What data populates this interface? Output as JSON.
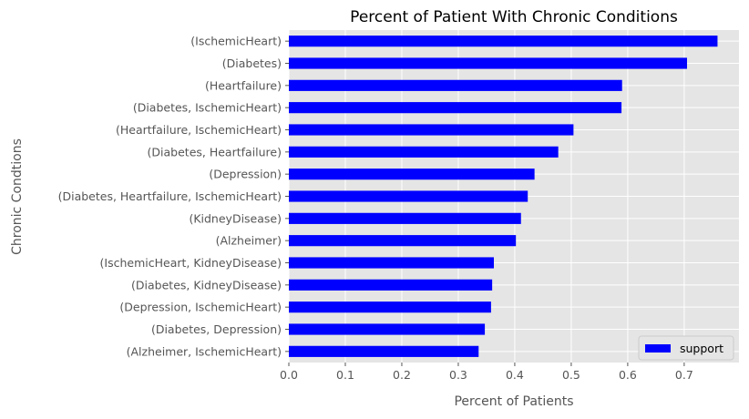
{
  "chart_data": {
    "type": "bar",
    "orientation": "horizontal",
    "title": "Percent of Patient With Chronic Conditions",
    "xlabel": "Percent of Patients",
    "ylabel": "Chronic Condtions",
    "categories": [
      "(IschemicHeart)",
      "(Diabetes)",
      "(Heartfailure)",
      "(Diabetes, IschemicHeart)",
      "(Heartfailure, IschemicHeart)",
      "(Diabetes, Heartfailure)",
      "(Depression)",
      "(Diabetes, Heartfailure, IschemicHeart)",
      "(KidneyDisease)",
      "(Alzheimer)",
      "(IschemicHeart, KidneyDisease)",
      "(Diabetes, KidneyDisease)",
      "(Depression, IschemicHeart)",
      "(Diabetes, Depression)",
      "(Alzheimer, IschemicHeart)"
    ],
    "series": [
      {
        "name": "support",
        "color": "#0000ff",
        "values": [
          0.759,
          0.705,
          0.59,
          0.589,
          0.504,
          0.477,
          0.435,
          0.423,
          0.411,
          0.402,
          0.363,
          0.36,
          0.358,
          0.347,
          0.336
        ]
      }
    ],
    "xlim": [
      0,
      0.797
    ],
    "xticks": [
      0.0,
      0.1,
      0.2,
      0.3,
      0.4,
      0.5,
      0.6,
      0.7
    ],
    "grid": true,
    "legend_position": "bottom-right",
    "style": "ggplot",
    "plot_background": "#e5e5e5",
    "grid_color": "#ffffff"
  }
}
